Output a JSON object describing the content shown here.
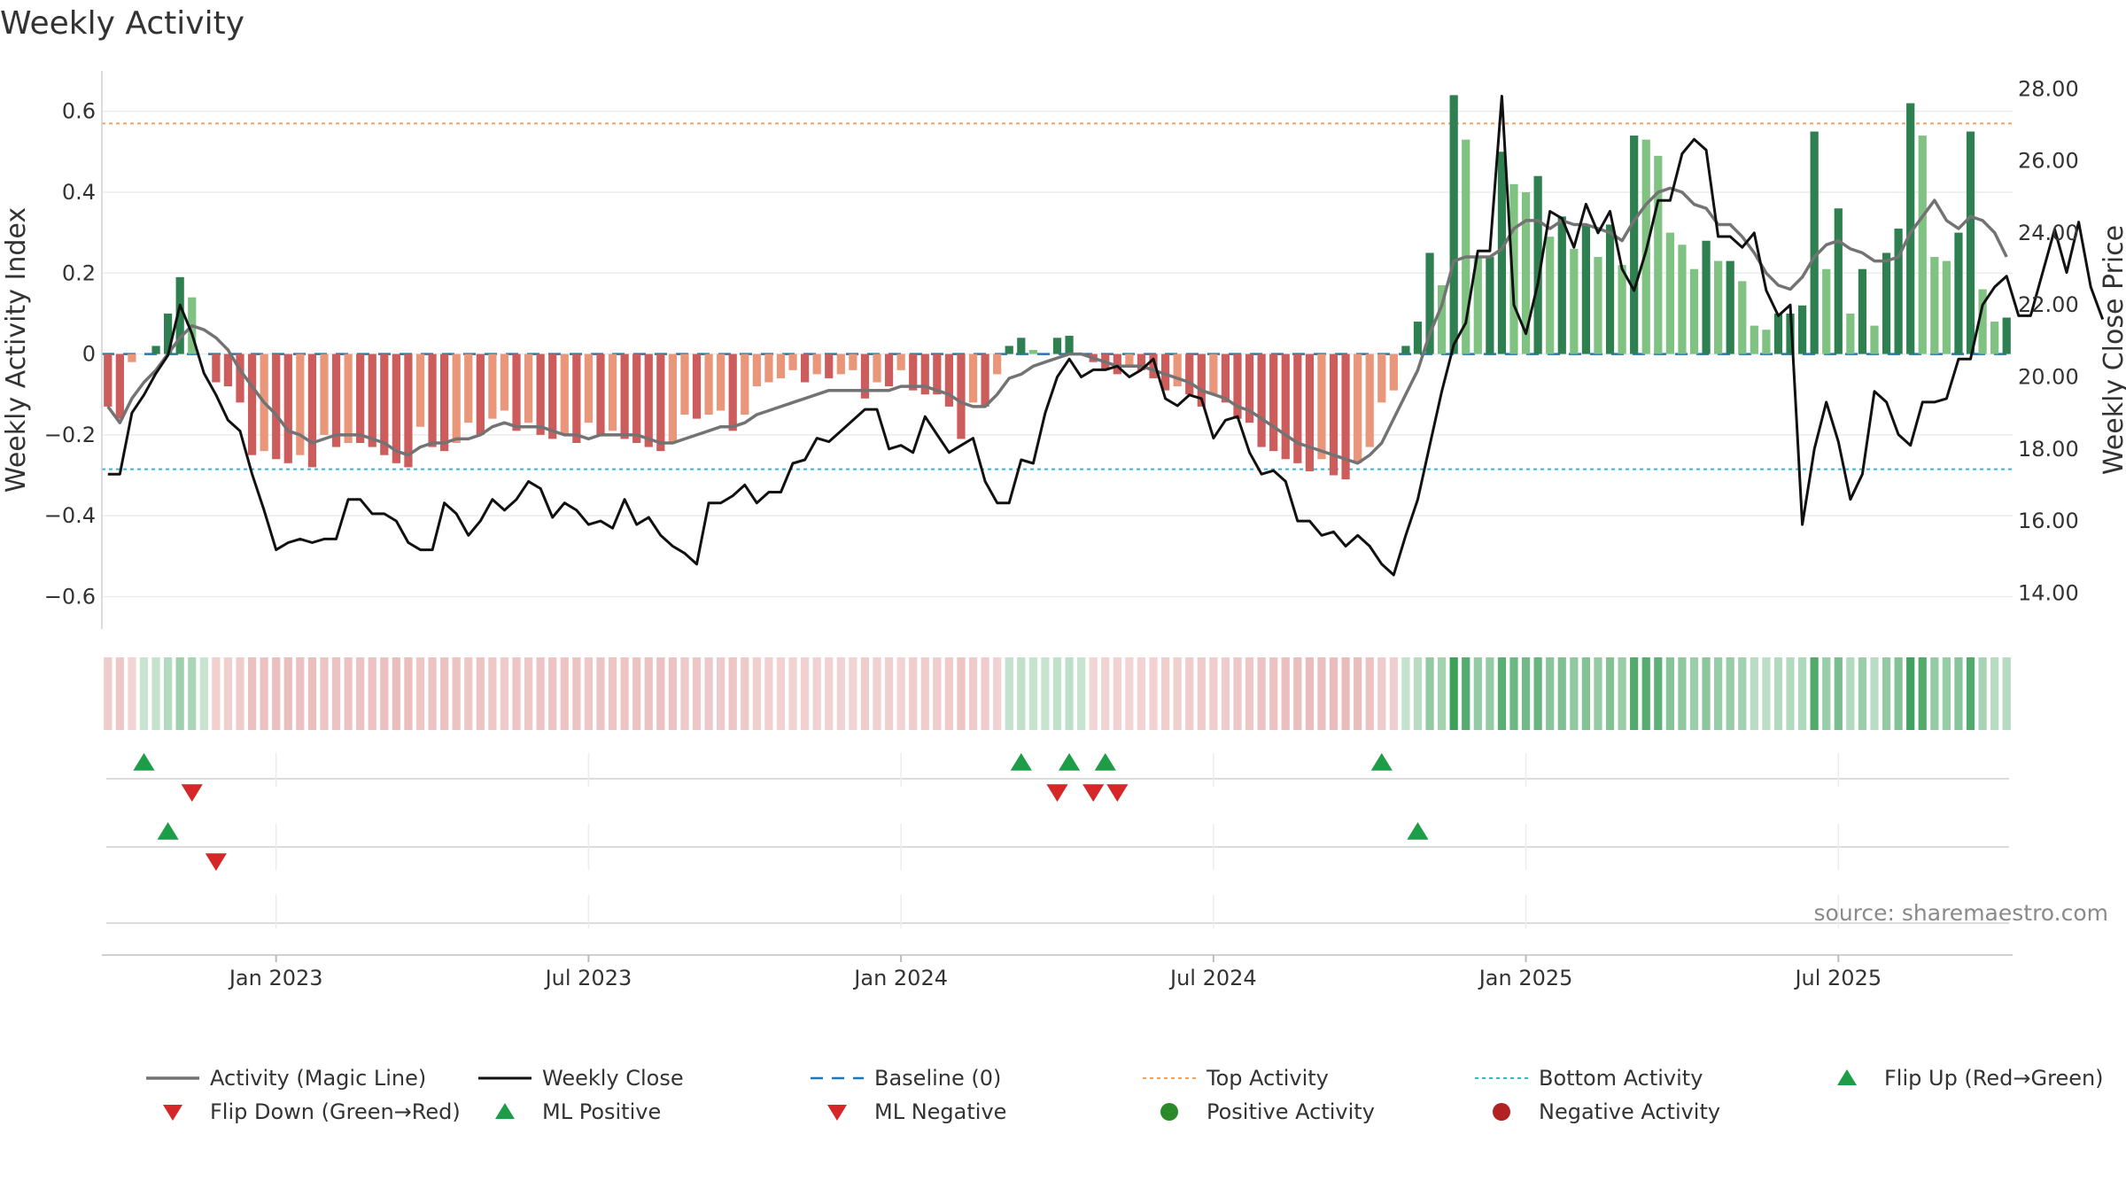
{
  "chart_data": {
    "type": "bar",
    "title": "Weekly Activity",
    "ylabel": "Weekly Activity Index",
    "y2label": "Weekly Close Price",
    "ylim": [
      -0.68,
      0.7
    ],
    "y2lim": [
      13.0,
      28.5
    ],
    "yticks": [
      {
        "v": 0.6,
        "label": "0.6"
      },
      {
        "v": 0.4,
        "label": "0.4"
      },
      {
        "v": 0.2,
        "label": "0.2"
      },
      {
        "v": 0,
        "label": "0"
      },
      {
        "v": -0.2,
        "label": "−0.2"
      },
      {
        "v": -0.4,
        "label": "−0.4"
      },
      {
        "v": -0.6,
        "label": "−0.6"
      }
    ],
    "y2ticks": [
      {
        "v": 28,
        "label": "28.00"
      },
      {
        "v": 26,
        "label": "26.00"
      },
      {
        "v": 24,
        "label": "24.00"
      },
      {
        "v": 22,
        "label": "22.00"
      },
      {
        "v": 20,
        "label": "20.00"
      },
      {
        "v": 18,
        "label": "18.00"
      },
      {
        "v": 16,
        "label": "16.00"
      },
      {
        "v": 14,
        "label": "14.00"
      }
    ],
    "xticks": [
      {
        "week": 14,
        "label": "Jan 2023"
      },
      {
        "week": 40,
        "label": "Jul 2023"
      },
      {
        "week": 66,
        "label": "Jan 2024"
      },
      {
        "week": 92,
        "label": "Jul 2024"
      },
      {
        "week": 118,
        "label": "Jan 2025"
      },
      {
        "week": 144,
        "label": "Jul 2025"
      }
    ],
    "top_activity": 0.57,
    "bottom_activity": -0.285,
    "activity_bars": [
      -0.13,
      -0.16,
      -0.02,
      0.0,
      0.02,
      0.1,
      0.19,
      0.14,
      0.0,
      -0.07,
      -0.08,
      -0.12,
      -0.25,
      -0.24,
      -0.26,
      -0.27,
      -0.25,
      -0.28,
      -0.2,
      -0.23,
      -0.22,
      -0.22,
      -0.23,
      -0.25,
      -0.27,
      -0.28,
      -0.18,
      -0.23,
      -0.24,
      -0.22,
      -0.17,
      -0.2,
      -0.16,
      -0.14,
      -0.19,
      -0.17,
      -0.2,
      -0.21,
      -0.2,
      -0.22,
      -0.17,
      -0.2,
      -0.19,
      -0.21,
      -0.22,
      -0.23,
      -0.24,
      -0.22,
      -0.15,
      -0.16,
      -0.15,
      -0.14,
      -0.19,
      -0.15,
      -0.08,
      -0.07,
      -0.06,
      -0.04,
      -0.07,
      -0.05,
      -0.06,
      -0.05,
      -0.04,
      -0.11,
      -0.07,
      -0.08,
      -0.04,
      -0.09,
      -0.1,
      -0.1,
      -0.13,
      -0.21,
      -0.12,
      -0.13,
      -0.05,
      0.02,
      0.04,
      0.01,
      0.0,
      0.04,
      0.045,
      0.0,
      -0.02,
      -0.04,
      -0.05,
      -0.03,
      -0.04,
      -0.06,
      -0.09,
      -0.08,
      -0.1,
      -0.13,
      -0.1,
      -0.12,
      -0.16,
      -0.17,
      -0.23,
      -0.24,
      -0.26,
      -0.27,
      -0.29,
      -0.26,
      -0.3,
      -0.31,
      -0.27,
      -0.23,
      -0.12,
      -0.09,
      0.02,
      0.08,
      0.25,
      0.17,
      0.64,
      0.53,
      0.24,
      0.24,
      0.5,
      0.42,
      0.4,
      0.44,
      0.29,
      0.34,
      0.26,
      0.32,
      0.24,
      0.32,
      0.22,
      0.54,
      0.53,
      0.49,
      0.3,
      0.27,
      0.21,
      0.28,
      0.23,
      0.23,
      0.18,
      0.07,
      0.06,
      0.1,
      0.1,
      0.12,
      0.55,
      0.21,
      0.36,
      0.1,
      0.21,
      0.07,
      0.25,
      0.31,
      0.62,
      0.54,
      0.24,
      0.23,
      0.3,
      0.55,
      0.16,
      0.08,
      0.09
    ],
    "magic_line": [
      -0.13,
      -0.17,
      -0.11,
      -0.07,
      -0.04,
      0.0,
      0.04,
      0.07,
      0.06,
      0.04,
      0.01,
      -0.04,
      -0.08,
      -0.12,
      -0.15,
      -0.19,
      -0.2,
      -0.22,
      -0.21,
      -0.2,
      -0.2,
      -0.2,
      -0.21,
      -0.22,
      -0.24,
      -0.25,
      -0.23,
      -0.22,
      -0.22,
      -0.21,
      -0.21,
      -0.2,
      -0.18,
      -0.17,
      -0.18,
      -0.18,
      -0.18,
      -0.19,
      -0.2,
      -0.2,
      -0.21,
      -0.2,
      -0.2,
      -0.2,
      -0.2,
      -0.21,
      -0.22,
      -0.22,
      -0.21,
      -0.2,
      -0.19,
      -0.18,
      -0.18,
      -0.17,
      -0.15,
      -0.14,
      -0.13,
      -0.12,
      -0.11,
      -0.1,
      -0.09,
      -0.09,
      -0.09,
      -0.09,
      -0.09,
      -0.09,
      -0.08,
      -0.08,
      -0.08,
      -0.09,
      -0.1,
      -0.12,
      -0.13,
      -0.13,
      -0.1,
      -0.06,
      -0.05,
      -0.03,
      -0.02,
      -0.01,
      0.0,
      0.0,
      -0.01,
      -0.02,
      -0.03,
      -0.03,
      -0.03,
      -0.04,
      -0.05,
      -0.06,
      -0.07,
      -0.09,
      -0.1,
      -0.11,
      -0.13,
      -0.14,
      -0.16,
      -0.18,
      -0.2,
      -0.22,
      -0.23,
      -0.24,
      -0.25,
      -0.26,
      -0.27,
      -0.25,
      -0.22,
      -0.16,
      -0.1,
      -0.04,
      0.05,
      0.12,
      0.23,
      0.24,
      0.24,
      0.24,
      0.26,
      0.31,
      0.33,
      0.33,
      0.31,
      0.33,
      0.32,
      0.32,
      0.31,
      0.3,
      0.28,
      0.33,
      0.37,
      0.4,
      0.41,
      0.4,
      0.37,
      0.36,
      0.32,
      0.32,
      0.29,
      0.25,
      0.2,
      0.17,
      0.16,
      0.19,
      0.24,
      0.27,
      0.28,
      0.26,
      0.25,
      0.23,
      0.23,
      0.24,
      0.3,
      0.34,
      0.38,
      0.33,
      0.31,
      0.34,
      0.33,
      0.3,
      0.24
    ],
    "weekly_close": [
      17.3,
      17.3,
      19.0,
      19.5,
      20.1,
      20.6,
      22.0,
      21.2,
      20.1,
      19.5,
      18.8,
      18.5,
      17.3,
      16.3,
      15.2,
      15.4,
      15.5,
      15.4,
      15.5,
      15.5,
      16.6,
      16.6,
      16.2,
      16.2,
      16.0,
      15.4,
      15.2,
      15.2,
      16.5,
      16.2,
      15.6,
      16.0,
      16.6,
      16.3,
      16.6,
      17.1,
      16.9,
      16.1,
      16.5,
      16.3,
      15.9,
      16.0,
      15.8,
      16.6,
      15.9,
      16.1,
      15.6,
      15.3,
      15.1,
      14.8,
      16.5,
      16.5,
      16.7,
      17.0,
      16.5,
      16.8,
      16.8,
      17.6,
      17.7,
      18.3,
      18.2,
      18.5,
      18.8,
      19.1,
      19.1,
      18.0,
      18.1,
      17.9,
      18.9,
      18.4,
      17.9,
      18.1,
      18.3,
      17.1,
      16.5,
      16.5,
      17.7,
      17.6,
      19.0,
      20.0,
      20.5,
      20.0,
      20.2,
      20.2,
      20.3,
      20.0,
      20.2,
      20.5,
      19.4,
      19.2,
      19.5,
      19.4,
      18.3,
      18.8,
      18.9,
      17.9,
      17.3,
      17.4,
      17.1,
      16.0,
      16.0,
      15.6,
      15.7,
      15.3,
      15.6,
      15.3,
      14.8,
      14.5,
      15.6,
      16.6,
      18.1,
      19.6,
      20.9,
      21.5,
      23.5,
      23.5,
      27.8,
      22.0,
      21.2,
      22.6,
      24.6,
      24.4,
      23.6,
      24.8,
      24.0,
      24.6,
      23.0,
      22.4,
      23.5,
      24.9,
      24.9,
      26.2,
      26.6,
      26.3,
      23.9,
      23.9,
      23.6,
      24.0,
      22.4,
      21.7,
      22.0,
      15.9,
      18.0,
      19.3,
      18.2,
      16.6,
      17.3,
      19.6,
      19.3,
      18.4,
      18.1,
      19.3,
      19.3,
      19.4,
      20.5,
      20.5,
      22.0,
      22.5,
      22.8,
      21.7,
      21.7,
      22.9,
      24.1,
      22.9,
      24.3,
      22.5,
      21.6
    ],
    "signals": {
      "row1_flip_up": [
        3,
        76,
        80,
        83,
        106
      ],
      "row1_flip_down": [
        7,
        79,
        82,
        84
      ],
      "row2_ml_positive": [
        5,
        109
      ],
      "row2_ml_negative": [
        9
      ]
    },
    "legend": [
      {
        "label": "Activity (Magic Line)",
        "kind": "line",
        "color": "#737373"
      },
      {
        "label": "Weekly Close",
        "kind": "line",
        "color": "#111111"
      },
      {
        "label": "Baseline (0)",
        "kind": "dashed",
        "color": "#1f77b4"
      },
      {
        "label": "Top Activity",
        "kind": "dotted",
        "color": "#f0a35e"
      },
      {
        "label": "Bottom Activity",
        "kind": "dotted",
        "color": "#29bcd1"
      },
      {
        "label": "Flip Up (Red→Green)",
        "kind": "tri-up",
        "color": "#1e9d48"
      },
      {
        "label": "Flip Down (Green→Red)",
        "kind": "tri-down",
        "color": "#d62728"
      },
      {
        "label": "ML Positive",
        "kind": "tri-up",
        "color": "#1e9d48"
      },
      {
        "label": "ML Negative",
        "kind": "tri-down",
        "color": "#d62728"
      },
      {
        "label": "Positive Activity",
        "kind": "dot",
        "color": "#2a8a2a"
      },
      {
        "label": "Negative Activity",
        "kind": "dot",
        "color": "#b22222"
      }
    ],
    "source": "source: sharemaestro.com"
  },
  "colors": {
    "pos_dark": "#2e8050",
    "pos_light": "#80c281",
    "neg_dark": "#cd5c5c",
    "neg_light": "#e9967a",
    "magic_line": "#737373",
    "close_line": "#111111",
    "baseline": "#1f77b4",
    "top_line": "#f0a35e",
    "bottom_line": "#29bcd1",
    "up_triangle": "#1e9d48",
    "down_triangle": "#d62728"
  }
}
